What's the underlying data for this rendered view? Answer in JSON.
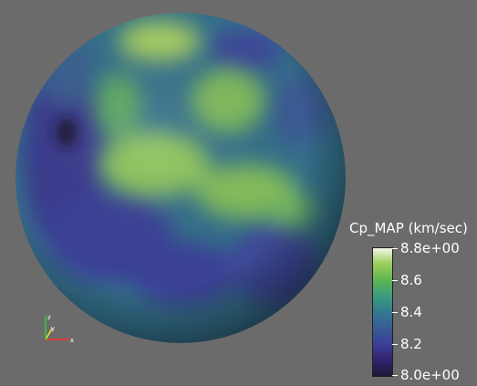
{
  "scalar_bar": {
    "title": "Cp_MAP (km/sec)",
    "ticks": [
      {
        "label": "8.8e+00",
        "value": 8.8
      },
      {
        "label": "8.6",
        "value": 8.6
      },
      {
        "label": "8.4",
        "value": 8.4
      },
      {
        "label": "8.2",
        "value": 8.2
      },
      {
        "label": "8.0e+00",
        "value": 8.0
      }
    ],
    "range": [
      8.0,
      8.8
    ]
  },
  "orientation_axes": {
    "x": "x",
    "y": "y",
    "z": "z",
    "colors": {
      "x": "#ff3030",
      "y": "#e8e830",
      "z": "#30d030"
    }
  },
  "colors": {
    "background": "#6b6b6b",
    "sphere_base": "#3a6a8a",
    "high": "#9cc95a",
    "low": "#3a3f96"
  }
}
